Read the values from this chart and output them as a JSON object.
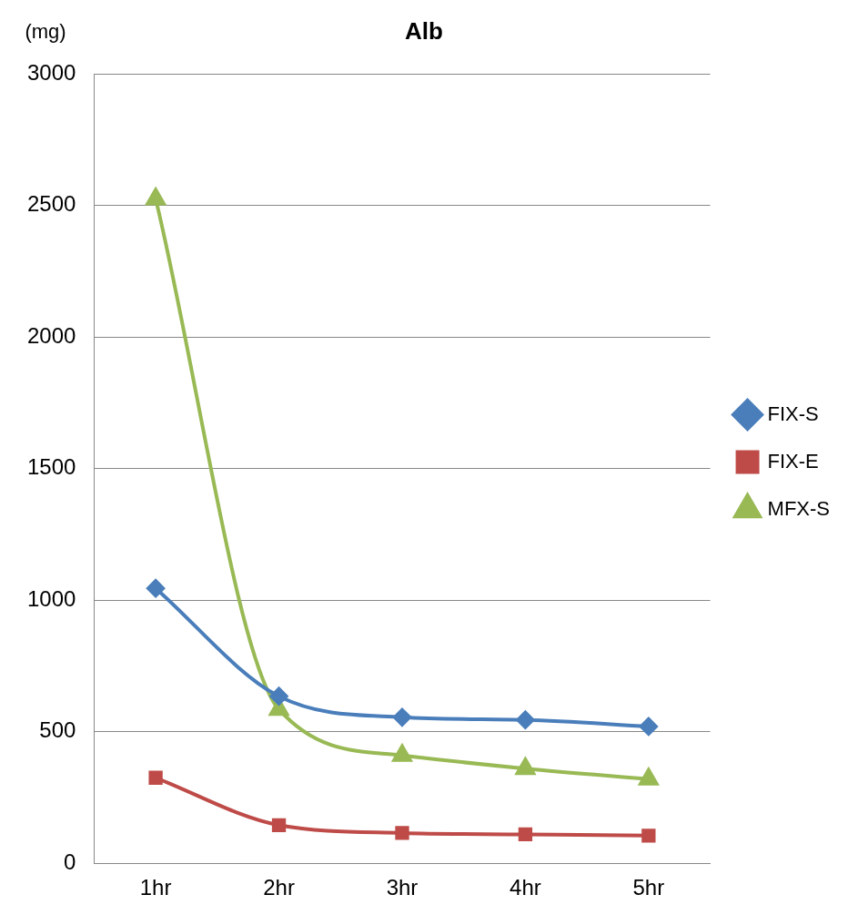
{
  "chart_data": {
    "type": "line",
    "title": "Alb",
    "ylabel": "(mg)",
    "categories": [
      "1hr",
      "2hr",
      "3hr",
      "4hr",
      "5hr"
    ],
    "series": [
      {
        "name": "FIX-S",
        "color": "#4a7ebb",
        "marker": "diamond",
        "values": [
          1045,
          635,
          555,
          545,
          520
        ]
      },
      {
        "name": "FIX-E",
        "color": "#be4b48",
        "marker": "square",
        "values": [
          325,
          145,
          115,
          110,
          105
        ]
      },
      {
        "name": "MFX-S",
        "color": "#98b954",
        "marker": "triangle",
        "values": [
          2525,
          585,
          410,
          360,
          320
        ]
      }
    ],
    "ylim": [
      0,
      3000
    ],
    "yticks": [
      0,
      500,
      1000,
      1500,
      2000,
      2500,
      3000
    ],
    "grid": "y",
    "legend": "right"
  }
}
